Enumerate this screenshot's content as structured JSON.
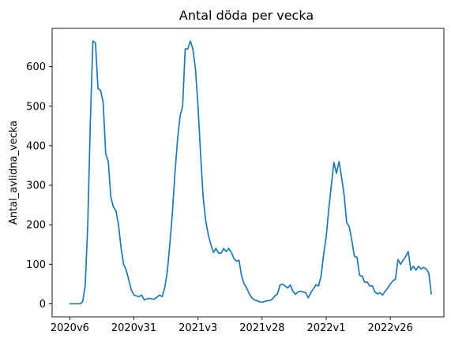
{
  "chart_data": {
    "type": "line",
    "title": "Antal döda per vecka",
    "xlabel": "",
    "ylabel": "Antal_avlidna_vecka",
    "x_tick_labels": [
      "2020v6",
      "2020v31",
      "2021v3",
      "2021v28",
      "2022v1",
      "2022v26"
    ],
    "x_tick_indices": [
      0,
      25,
      50,
      75,
      100,
      125
    ],
    "y_ticks": [
      0,
      100,
      200,
      300,
      400,
      500,
      600
    ],
    "y_tick_labels": [
      "0",
      "100",
      "200",
      "300",
      "400",
      "500",
      "600"
    ],
    "xlim": [
      -6.9,
      145.9
    ],
    "ylim": [
      -33,
      697
    ],
    "grid": false,
    "line_color": "#1f77b4",
    "series": [
      {
        "name": "Antal_avlidna_vecka",
        "values": [
          0,
          0,
          0,
          0,
          0,
          5,
          45,
          200,
          460,
          665,
          660,
          545,
          540,
          510,
          380,
          360,
          270,
          245,
          235,
          200,
          140,
          100,
          85,
          60,
          35,
          22,
          20,
          18,
          22,
          10,
          12,
          14,
          12,
          12,
          17,
          22,
          18,
          40,
          80,
          150,
          230,
          330,
          415,
          475,
          500,
          645,
          645,
          665,
          645,
          595,
          500,
          380,
          270,
          210,
          175,
          150,
          130,
          140,
          128,
          128,
          140,
          132,
          140,
          130,
          115,
          108,
          110,
          70,
          50,
          40,
          25,
          15,
          10,
          8,
          5,
          4,
          6,
          8,
          8,
          12,
          20,
          25,
          48,
          50,
          45,
          40,
          48,
          32,
          24,
          30,
          32,
          30,
          28,
          15,
          28,
          38,
          48,
          45,
          70,
          125,
          170,
          240,
          300,
          358,
          330,
          360,
          320,
          275,
          205,
          195,
          160,
          120,
          118,
          72,
          70,
          55,
          55,
          45,
          45,
          30,
          25,
          28,
          22,
          32,
          40,
          50,
          58,
          62,
          112,
          100,
          110,
          120,
          132,
          85,
          95,
          85,
          95,
          88,
          92,
          88,
          78,
          25
        ]
      }
    ]
  }
}
